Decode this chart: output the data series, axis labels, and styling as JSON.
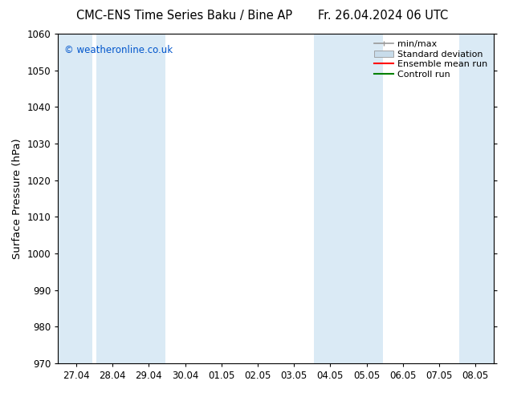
{
  "title_left": "CMC-ENS Time Series Baku / Bine AP",
  "title_right": "Fr. 26.04.2024 06 UTC",
  "ylabel": "Surface Pressure (hPa)",
  "ylim": [
    970,
    1060
  ],
  "yticks": [
    970,
    980,
    990,
    1000,
    1010,
    1020,
    1030,
    1040,
    1050,
    1060
  ],
  "x_labels": [
    "27.04",
    "28.04",
    "29.04",
    "30.04",
    "01.05",
    "02.05",
    "03.05",
    "04.05",
    "05.05",
    "06.05",
    "07.05",
    "08.05"
  ],
  "x_positions": [
    0,
    1,
    2,
    3,
    4,
    5,
    6,
    7,
    8,
    9,
    10,
    11
  ],
  "shade_color": "#daeaf5",
  "watermark": "© weatheronline.co.uk",
  "watermark_color": "#0055cc",
  "legend_labels": [
    "min/max",
    "Standard deviation",
    "Ensemble mean run",
    "Controll run"
  ],
  "minmax_color": "#999999",
  "std_color": "#c8dcea",
  "ensemble_color": "#ff0000",
  "control_color": "#008000",
  "bg_color": "#ffffff",
  "title_fontsize": 10.5,
  "tick_fontsize": 8.5,
  "ylabel_fontsize": 9.5,
  "legend_fontsize": 8
}
